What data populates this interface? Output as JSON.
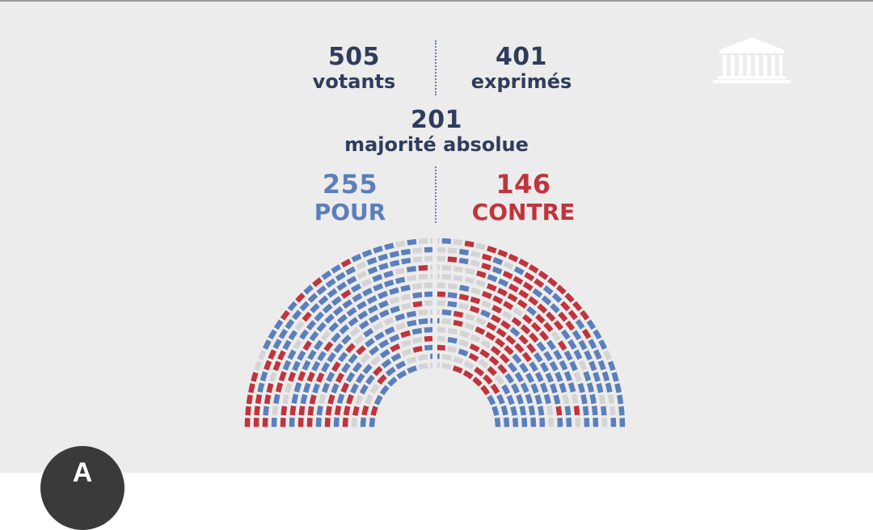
{
  "stats": {
    "votants": {
      "value": "505",
      "label": "votants"
    },
    "exprimes": {
      "value": "401",
      "label": "exprimés"
    },
    "majorite": {
      "value": "201",
      "label": "majorité absolue"
    },
    "pour": {
      "value": "255",
      "label": "POUR"
    },
    "contre": {
      "value": "146",
      "label": "CONTRE"
    }
  },
  "colors": {
    "pour": "#5b7fbb",
    "contre": "#c0343d",
    "abstention": "#d4d4d4",
    "text": "#2f3d5c",
    "background": "#ececec"
  },
  "icons": {
    "institution": "assembly-building-icon"
  },
  "avatar": {
    "initial": "A"
  },
  "chart_data": {
    "type": "hemicycle",
    "title": "",
    "series": [
      {
        "name": "POUR",
        "value": 255
      },
      {
        "name": "CONTRE",
        "value": 146
      }
    ],
    "votants": 505,
    "exprimes": 401,
    "majorite_absolue": 201
  }
}
